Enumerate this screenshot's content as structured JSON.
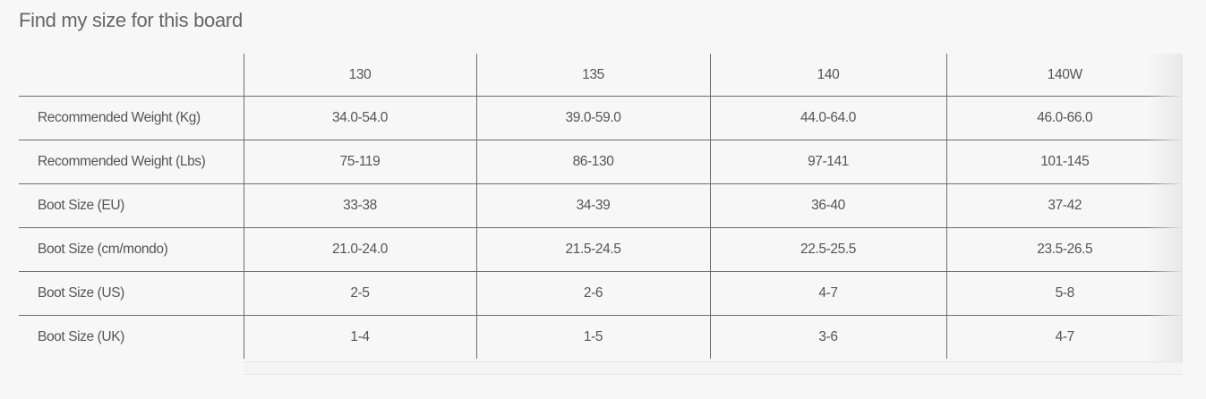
{
  "title": "Find my size for this board",
  "table": {
    "columns": [
      "",
      "130",
      "135",
      "140",
      "140W"
    ],
    "rows": [
      {
        "label": "Recommended Weight (Kg)",
        "values": [
          "34.0-54.0",
          "39.0-59.0",
          "44.0-64.0",
          "46.0-66.0"
        ]
      },
      {
        "label": "Recommended Weight (Lbs)",
        "values": [
          "75-119",
          "86-130",
          "97-141",
          "101-145"
        ]
      },
      {
        "label": "Boot Size (EU)",
        "values": [
          "33-38",
          "34-39",
          "36-40",
          "37-42"
        ]
      },
      {
        "label": "Boot Size (cm/mondo)",
        "values": [
          "21.0-24.0",
          "21.5-24.5",
          "22.5-25.5",
          "23.5-26.5"
        ]
      },
      {
        "label": "Boot Size (US)",
        "values": [
          "2-5",
          "2-6",
          "4-7",
          "5-8"
        ]
      },
      {
        "label": "Boot Size (UK)",
        "values": [
          "1-4",
          "1-5",
          "3-6",
          "4-7"
        ]
      }
    ]
  }
}
